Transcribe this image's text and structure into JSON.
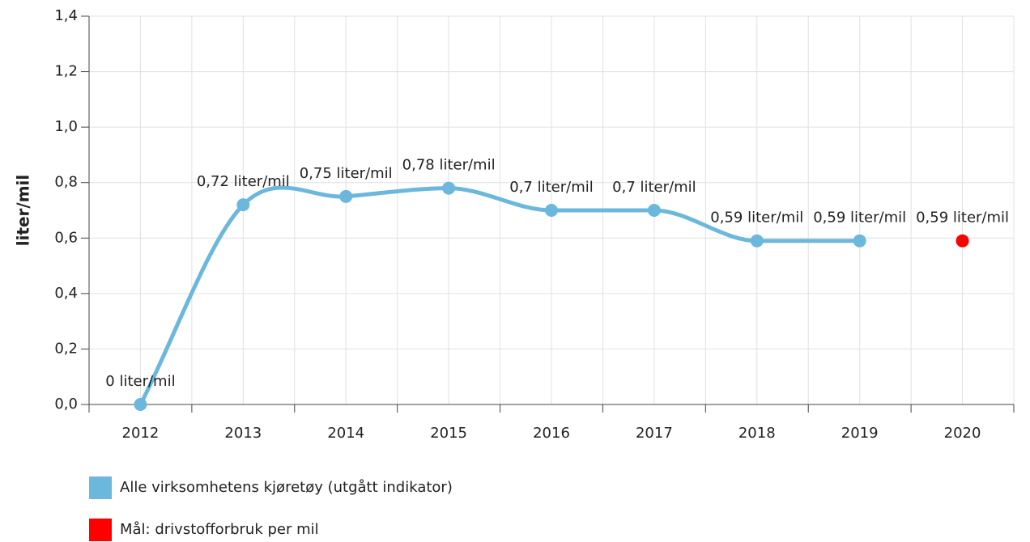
{
  "chart_data": {
    "type": "line",
    "y_label": "liter/mil",
    "categories": [
      "2012",
      "2013",
      "2014",
      "2015",
      "2016",
      "2017",
      "2018",
      "2019",
      "2020"
    ],
    "series": [
      {
        "name": "Alle virksomhetens kjøretøy (utgått indikator)",
        "color": "#6cb7dc",
        "line": true,
        "values": [
          0,
          0.72,
          0.75,
          0.78,
          0.7,
          0.7,
          0.59,
          0.59,
          null
        ],
        "value_labels": [
          "0 liter/mil",
          "0,72 liter/mil",
          "0,75 liter/mil",
          "0,78 liter/mil",
          "0,7 liter/mil",
          "0,7 liter/mil",
          "0,59 liter/mil",
          "0,59 liter/mil",
          null
        ]
      },
      {
        "name": "Mål: drivstofforbruk per mil",
        "color": "#ff0000",
        "line": false,
        "values": [
          null,
          null,
          null,
          null,
          null,
          null,
          null,
          null,
          0.59
        ],
        "value_labels": [
          null,
          null,
          null,
          null,
          null,
          null,
          null,
          null,
          "0,59 liter/mil"
        ]
      }
    ],
    "ylim": [
      0,
      1.4
    ],
    "yticks": [
      {
        "value": 0,
        "label": "0,0"
      },
      {
        "value": 0.2,
        "label": "0,2"
      },
      {
        "value": 0.4,
        "label": "0,4"
      },
      {
        "value": 0.6,
        "label": "0,6"
      },
      {
        "value": 0.8,
        "label": "0,8"
      },
      {
        "value": 1.0,
        "label": "1,0"
      },
      {
        "value": 1.2,
        "label": "1,2"
      },
      {
        "value": 1.4,
        "label": "1,4"
      }
    ],
    "grid": true
  }
}
